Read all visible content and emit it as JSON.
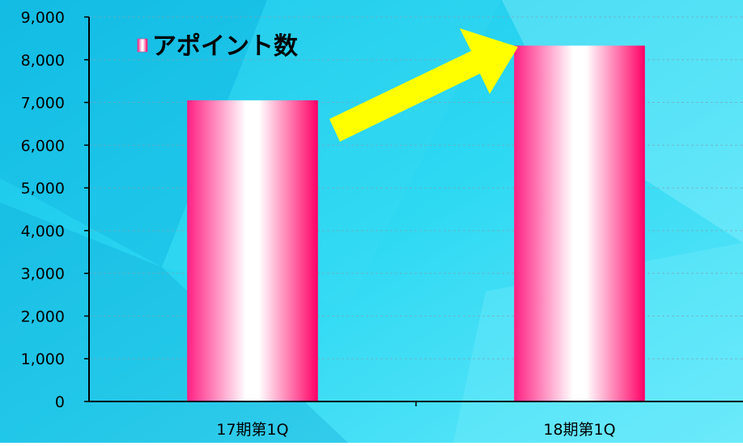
{
  "chart_data": {
    "type": "bar",
    "categories": [
      "17期第1Q",
      "18期第1Q"
    ],
    "series": [
      {
        "name": "アポイント数",
        "values": [
          7050,
          8330
        ]
      }
    ],
    "ylim": [
      0,
      9000
    ],
    "yticks": [
      "0",
      "1,000",
      "2,000",
      "3,000",
      "4,000",
      "5,000",
      "6,000",
      "7,000",
      "8,000",
      "9,000"
    ],
    "grid": true,
    "legend_position": "top-left",
    "annotation": "yellow-arrow-up-right",
    "colors": {
      "bar_edge": "#ff1f82",
      "bar_center": "#ffffff",
      "arrow": "#ffff00",
      "background": "#29d3ef"
    }
  }
}
